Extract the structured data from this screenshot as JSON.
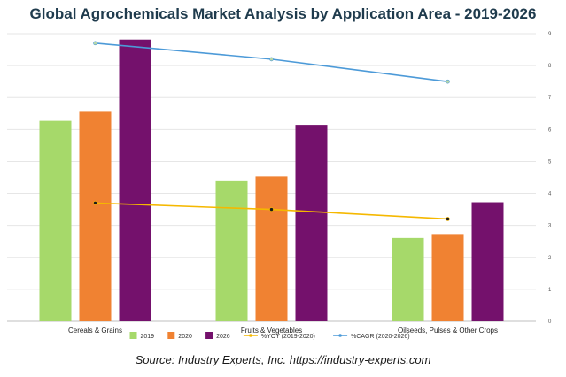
{
  "chart_data": {
    "type": "bar",
    "title": "Global Agrochemicals Market Analysis by Application Area - 2019-2026",
    "categories": [
      "Cereals & Grains",
      "Fruits & Vegetables",
      "Oilseeds, Pulses & Other Crops"
    ],
    "series": [
      {
        "name": "2019",
        "type": "bar",
        "axis": "left",
        "color": "#a6d96a",
        "values": [
          101,
          71,
          42
        ]
      },
      {
        "name": "2020",
        "type": "bar",
        "axis": "left",
        "color": "#f08232",
        "values": [
          106,
          73,
          44
        ]
      },
      {
        "name": "2026",
        "type": "bar",
        "axis": "left",
        "color": "#74116c",
        "values": [
          142,
          99,
          60
        ]
      },
      {
        "name": "%YOY (2019-2020)",
        "type": "line",
        "axis": "right",
        "color": "#f5b800",
        "values": [
          3.7,
          3.5,
          3.2
        ]
      },
      {
        "name": "%CAGR (2020-2026)",
        "type": "line",
        "axis": "right",
        "color": "#4c9ad8",
        "values": [
          8.7,
          8.2,
          7.5
        ]
      }
    ],
    "ylim_left": [
      0,
      145
    ],
    "ylim_right": [
      0,
      9
    ],
    "right_axis_ticks": [
      "0",
      "1",
      "2",
      "3",
      "4",
      "5",
      "6",
      "7",
      "8",
      "9"
    ],
    "grid": true,
    "legend_position": "bottom"
  },
  "source": "Source: Industry Experts, Inc. https://industry-experts.com"
}
